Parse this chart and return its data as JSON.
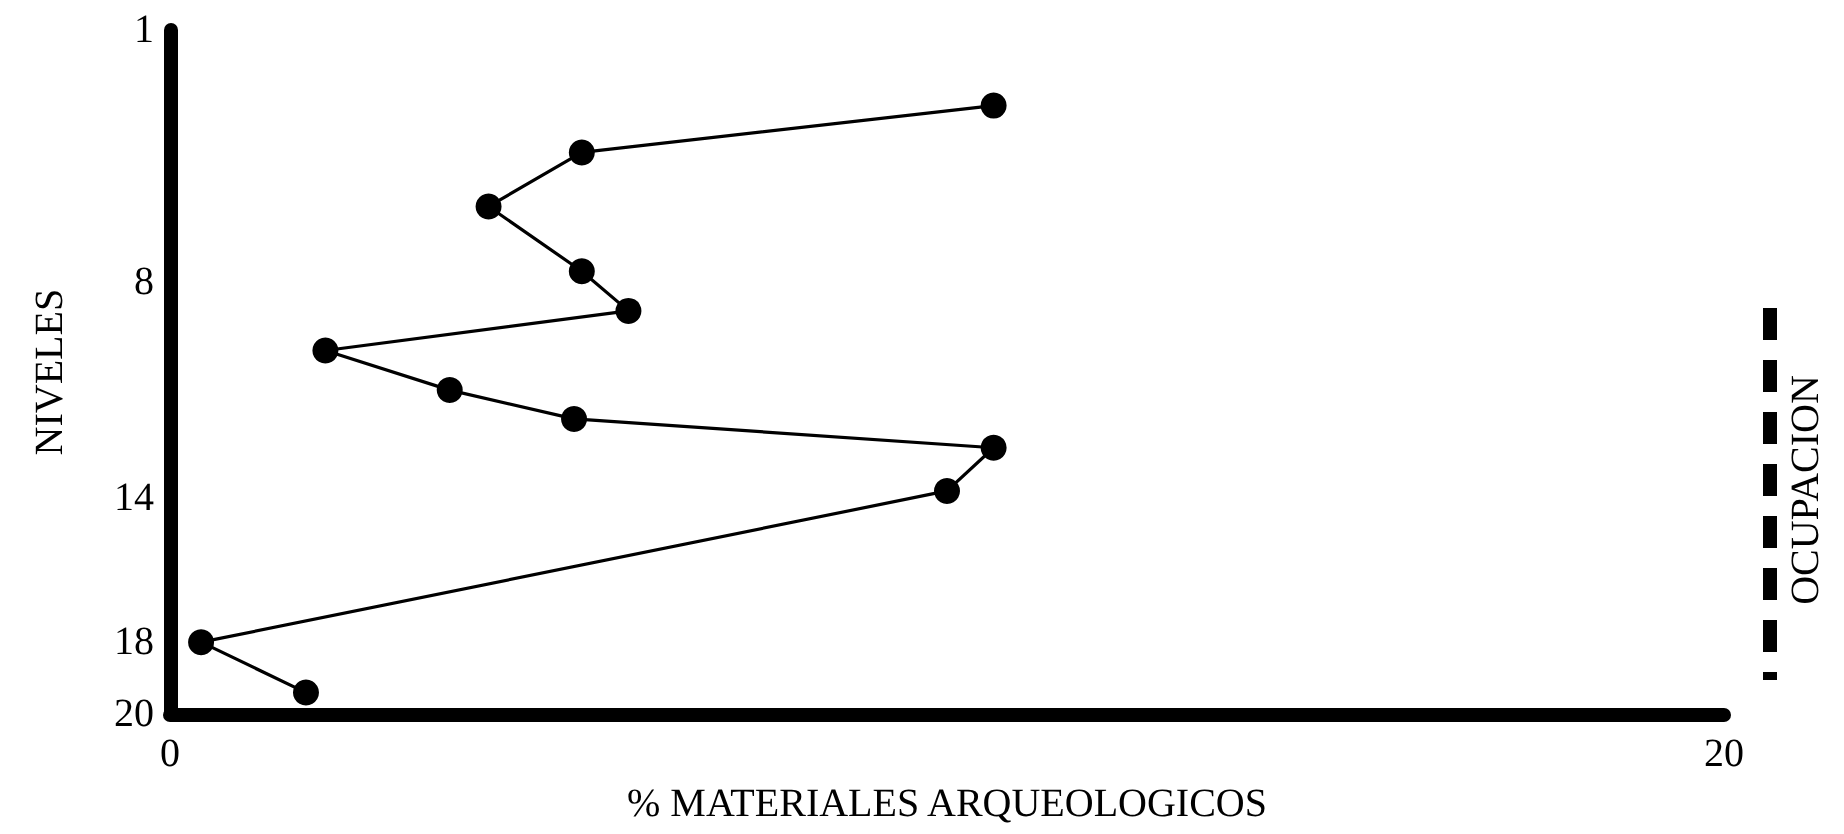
{
  "chart_data": {
    "type": "line",
    "xlabel": "% MATERIALES ARQUEOLOGICOS",
    "ylabel": "NIVELES",
    "xlim": [
      0,
      20
    ],
    "xticks": [
      0,
      20
    ],
    "ylim": [
      20,
      1
    ],
    "yticks": [
      1,
      8,
      14,
      18,
      20
    ],
    "marker": "circle",
    "line_style": "solid",
    "series": [
      {
        "color": "#000000",
        "x": [
          10.6,
          5.3,
          4.1,
          5.3,
          5.9,
          2.0,
          3.6,
          5.2,
          10.6,
          10.0,
          0.4,
          1.75
        ],
        "values": [
          3.1,
          4.4,
          5.9,
          7.7,
          8.8,
          9.9,
          11.0,
          11.8,
          12.6,
          13.8,
          18.0,
          19.4
        ]
      }
    ],
    "annotations": [
      "OCUPACION"
    ]
  }
}
